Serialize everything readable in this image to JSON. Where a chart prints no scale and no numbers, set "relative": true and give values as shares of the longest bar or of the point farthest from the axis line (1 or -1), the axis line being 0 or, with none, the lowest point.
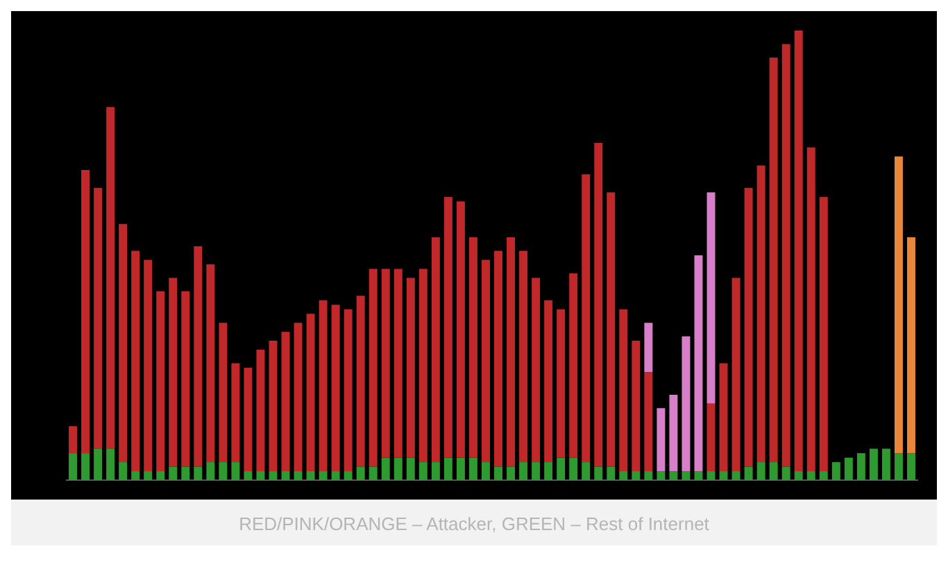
{
  "chart_data": {
    "type": "bar",
    "stacked": true,
    "relative": true,
    "legend": false,
    "categories": [
      null,
      null,
      null,
      null,
      null,
      null,
      null,
      null,
      null,
      null,
      null,
      null,
      null,
      null,
      null,
      null,
      null,
      null,
      null,
      null,
      null,
      null,
      null,
      null,
      null,
      null,
      null,
      null,
      null,
      null,
      null,
      null,
      null,
      null,
      null,
      null,
      null,
      null,
      null,
      null,
      null,
      null,
      null,
      null,
      null,
      null,
      null,
      null,
      null,
      null,
      null,
      null,
      null,
      null,
      null,
      null,
      null,
      null,
      null,
      null,
      null,
      null,
      null,
      null,
      null,
      null,
      null,
      null
    ],
    "series": [
      {
        "color": "#2f9a30",
        "values": [
          0.06,
          0.06,
          0.07,
          0.07,
          0.04,
          0.02,
          0.02,
          0.02,
          0.03,
          0.03,
          0.03,
          0.04,
          0.04,
          0.04,
          0.02,
          0.02,
          0.02,
          0.02,
          0.02,
          0.02,
          0.02,
          0.02,
          0.02,
          0.03,
          0.03,
          0.05,
          0.05,
          0.05,
          0.04,
          0.04,
          0.05,
          0.05,
          0.05,
          0.04,
          0.03,
          0.03,
          0.04,
          0.04,
          0.04,
          0.05,
          0.05,
          0.04,
          0.03,
          0.03,
          0.02,
          0.02,
          0.02,
          0.02,
          0.02,
          0.02,
          0.02,
          0.02,
          0.02,
          0.02,
          0.03,
          0.04,
          0.04,
          0.03,
          0.02,
          0.02,
          0.02,
          0.04,
          0.05,
          0.06,
          0.07,
          0.07,
          0.06,
          0.06
        ]
      },
      {
        "color": "#c0282a",
        "values": [
          0.06,
          0.63,
          0.58,
          0.76,
          0.53,
          0.49,
          0.47,
          0.4,
          0.42,
          0.39,
          0.49,
          0.44,
          0.31,
          0.22,
          0.23,
          0.27,
          0.29,
          0.31,
          0.33,
          0.35,
          0.38,
          0.37,
          0.36,
          0.38,
          0.44,
          0.42,
          0.42,
          0.4,
          0.43,
          0.5,
          0.58,
          0.57,
          0.49,
          0.45,
          0.48,
          0.51,
          0.47,
          0.41,
          0.36,
          0.33,
          0.41,
          0.64,
          0.72,
          0.61,
          0.36,
          0.29,
          0.22,
          null,
          null,
          null,
          null,
          0.15,
          0.24,
          0.43,
          0.62,
          0.66,
          0.9,
          0.94,
          0.98,
          0.72,
          0.61,
          null,
          null,
          null,
          null,
          null,
          null,
          null
        ]
      },
      {
        "color": "#d77fc8",
        "values": [
          null,
          null,
          null,
          null,
          null,
          null,
          null,
          null,
          null,
          null,
          null,
          null,
          null,
          null,
          null,
          null,
          null,
          null,
          null,
          null,
          null,
          null,
          null,
          null,
          null,
          null,
          null,
          null,
          null,
          null,
          null,
          null,
          null,
          null,
          null,
          null,
          null,
          null,
          null,
          null,
          null,
          null,
          null,
          null,
          null,
          null,
          0.11,
          0.14,
          0.17,
          0.3,
          0.48,
          0.47,
          null,
          null,
          null,
          null,
          null,
          null,
          null,
          null,
          null,
          null,
          null,
          null,
          null,
          null,
          null,
          null
        ]
      },
      {
        "color": "#e8873a",
        "values": [
          null,
          null,
          null,
          null,
          null,
          null,
          null,
          null,
          null,
          null,
          null,
          null,
          null,
          null,
          null,
          null,
          null,
          null,
          null,
          null,
          null,
          null,
          null,
          null,
          null,
          null,
          null,
          null,
          null,
          null,
          null,
          null,
          null,
          null,
          null,
          null,
          null,
          null,
          null,
          null,
          null,
          null,
          null,
          null,
          null,
          null,
          null,
          null,
          null,
          null,
          null,
          null,
          null,
          null,
          null,
          null,
          null,
          null,
          null,
          null,
          null,
          null,
          null,
          null,
          null,
          null,
          0.66,
          0.48
        ]
      }
    ],
    "annotations": [
      "RED/PINK/ORANGE – Attacker, GREEN – Rest of Internet"
    ]
  }
}
